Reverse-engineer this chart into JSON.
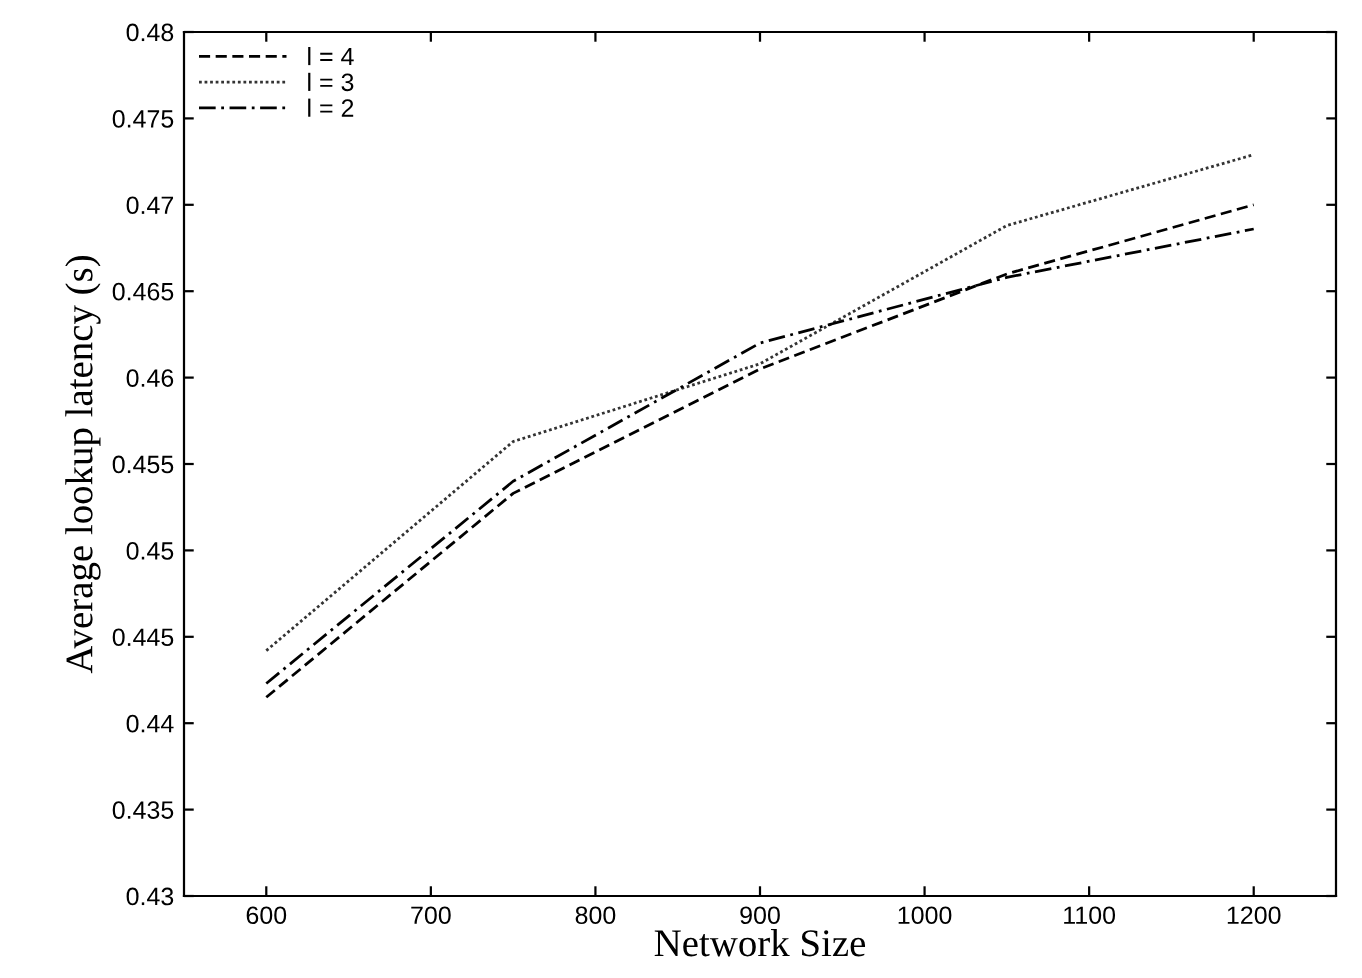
{
  "chart_data": {
    "type": "line",
    "xlabel": "Network Size",
    "ylabel": "Average lookup latency (s)",
    "x": [
      600,
      750,
      900,
      1050,
      1200
    ],
    "series": [
      {
        "name": "l = 4",
        "color": "#000000",
        "line_style": "dashed",
        "values": [
          0.4415,
          0.4533,
          0.4605,
          0.466,
          0.47
        ]
      },
      {
        "name": "l = 3",
        "color": "#333333",
        "line_style": "dotted",
        "values": [
          0.4442,
          0.4563,
          0.4608,
          0.4688,
          0.4729
        ]
      },
      {
        "name": "l = 2",
        "color": "#000000",
        "line_style": "dashdot",
        "values": [
          0.4423,
          0.454,
          0.462,
          0.4658,
          0.4686
        ]
      }
    ],
    "xlim": [
      550,
      1250
    ],
    "xticks": [
      600,
      700,
      800,
      900,
      1000,
      1100,
      1200
    ],
    "ylim": [
      0.43,
      0.48
    ],
    "yticks": [
      0.43,
      0.435,
      0.44,
      0.445,
      0.45,
      0.455,
      0.46,
      0.465,
      0.47,
      0.475,
      0.48
    ],
    "grid": false,
    "legend": "top left",
    "marker": "none"
  }
}
